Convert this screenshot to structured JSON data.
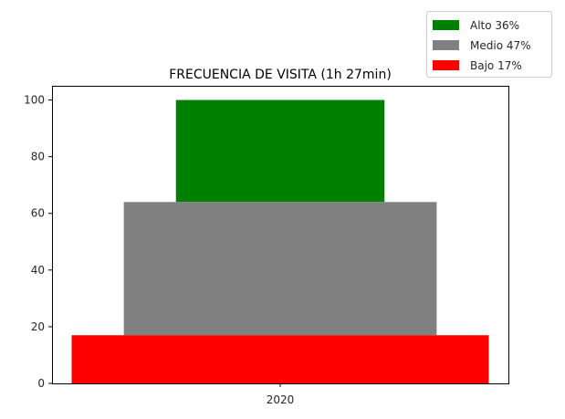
{
  "chart_data": {
    "type": "bar",
    "title": "FRECUENCIA DE VISITA (1h 27min)",
    "xlabel": "",
    "ylabel": "",
    "categories": [
      "2020"
    ],
    "ylim": [
      0,
      105
    ],
    "yticks": [
      0,
      20,
      40,
      60,
      80,
      100
    ],
    "grid": false,
    "legend_position": "top-right",
    "series": [
      {
        "name": "Alto 36%",
        "color": "#008000",
        "bottom": 64,
        "top": 100,
        "width_fraction": 0.5
      },
      {
        "name": "Medio 47%",
        "color": "#808080",
        "bottom": 17,
        "top": 64,
        "width_fraction": 0.75
      },
      {
        "name": "Bajo 17%",
        "color": "#ff0000",
        "bottom": 0,
        "top": 17,
        "width_fraction": 1.0
      }
    ]
  }
}
